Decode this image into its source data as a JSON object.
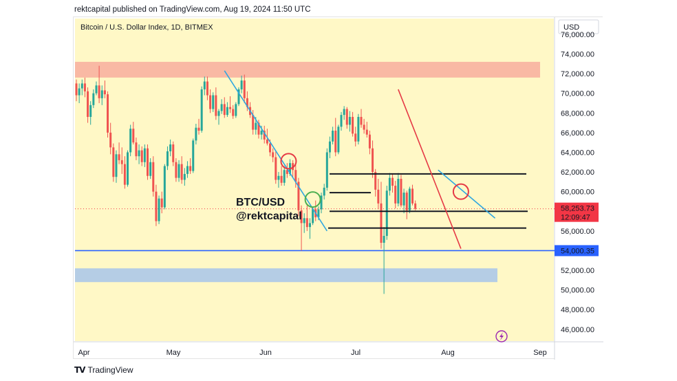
{
  "header": {
    "published_text": "rektcapital published on TradingView.com, Aug 19, 2024 11:50 UTC"
  },
  "footer": {
    "logo_mark": "TV",
    "logo_text": "TradingView"
  },
  "chart_data": {
    "type": "candlestick",
    "title": "Bitcoin / U.S. Dollar Index, 1D, BITMEX",
    "currency_label": "USD",
    "watermark": [
      "BTC/USD",
      "@rektcapital"
    ],
    "x_tick_labels": [
      "Apr",
      "May",
      "Jun",
      "Jul",
      "Aug",
      "Sep"
    ],
    "y_ticks": [
      46000,
      48000,
      50000,
      52000,
      54000,
      56000,
      58000,
      60000,
      62000,
      64000,
      66000,
      68000,
      70000,
      72000,
      74000,
      76000
    ],
    "y_tick_labels": [
      "46,000.00",
      "48,000.00",
      "50,000.00",
      "52,000.00",
      "54,000.00",
      "56,000.00",
      "58,000.00",
      "60,000.00",
      "62,000.00",
      "64,000.00",
      "66,000.00",
      "68,000.00",
      "70,000.00",
      "72,000.00",
      "74,000.00",
      "76,000.00"
    ],
    "ylim": [
      44800,
      77600
    ],
    "price_label": {
      "value": 58253.73,
      "text": "58,253.73",
      "countdown": "12:09:47",
      "color": "#f23645"
    },
    "level_label": {
      "value": 54000.35,
      "text": "54,000.35",
      "color": "#2962ff"
    },
    "colors": {
      "up": "#26a69a",
      "down": "#ef5350",
      "background": "#fff8c6",
      "resistance_zone": "#f9b9a4",
      "support_zone": "#b5cde5",
      "support_line": "#2962ff",
      "trendline_blue": "#2fa6e0",
      "trendline_red": "#e53945",
      "circle_red": "#e53945",
      "circle_green": "#4caf50"
    },
    "zones": [
      {
        "name": "resistance",
        "from": 71600,
        "to": 73200
      },
      {
        "name": "support",
        "from": 50800,
        "to": 52200
      }
    ],
    "horizontal_lines": [
      61800,
      59900,
      58000,
      56300
    ],
    "support_line": 54000.35,
    "candles": [
      [
        71000,
        71400,
        69200,
        69800
      ],
      [
        69800,
        71000,
        69000,
        70500
      ],
      [
        70500,
        71400,
        69800,
        71000
      ],
      [
        71000,
        71600,
        69600,
        70200
      ],
      [
        70200,
        70600,
        67000,
        67600
      ],
      [
        67600,
        69200,
        66800,
        68800
      ],
      [
        68800,
        70400,
        68500,
        70000
      ],
      [
        70000,
        71200,
        69800,
        70800
      ],
      [
        70800,
        72800,
        69000,
        69500
      ],
      [
        69500,
        70800,
        68800,
        70300
      ],
      [
        70300,
        71300,
        69500,
        69900
      ],
      [
        69900,
        70200,
        65500,
        66000
      ],
      [
        66000,
        67000,
        63800,
        64500
      ],
      [
        64500,
        64900,
        61000,
        61500
      ],
      [
        61500,
        64200,
        60900,
        63800
      ],
      [
        63800,
        65000,
        62800,
        63200
      ],
      [
        63200,
        64500,
        61800,
        62800
      ],
      [
        62800,
        63600,
        60300,
        60700
      ],
      [
        60700,
        64200,
        60500,
        64000
      ],
      [
        64000,
        66800,
        63600,
        66400
      ],
      [
        66400,
        67100,
        64800,
        65000
      ],
      [
        65000,
        65500,
        63200,
        63600
      ],
      [
        63600,
        64800,
        62800,
        64200
      ],
      [
        64200,
        64600,
        62600,
        63000
      ],
      [
        63000,
        64800,
        62500,
        64400
      ],
      [
        64400,
        64800,
        61200,
        61600
      ],
      [
        61600,
        63400,
        61300,
        63000
      ],
      [
        63000,
        63600,
        59500,
        60000
      ],
      [
        60000,
        60700,
        56500,
        57000
      ],
      [
        57000,
        59600,
        56700,
        59300
      ],
      [
        59300,
        60000,
        57800,
        58400
      ],
      [
        58400,
        62800,
        58200,
        62600
      ],
      [
        62600,
        64600,
        62200,
        64100
      ],
      [
        64100,
        65300,
        63600,
        64800
      ],
      [
        64800,
        65100,
        62600,
        63000
      ],
      [
        63000,
        63400,
        61000,
        61400
      ],
      [
        61400,
        63200,
        61000,
        62800
      ],
      [
        62800,
        63600,
        60800,
        61200
      ],
      [
        61200,
        62400,
        60600,
        61800
      ],
      [
        61800,
        63100,
        61400,
        62600
      ],
      [
        62600,
        63400,
        61800,
        62100
      ],
      [
        62100,
        65400,
        61900,
        65200
      ],
      [
        65200,
        66900,
        64800,
        66500
      ],
      [
        66500,
        67400,
        65800,
        66200
      ],
      [
        66200,
        70700,
        66000,
        70400
      ],
      [
        70400,
        71700,
        69800,
        71200
      ],
      [
        71200,
        71700,
        69300,
        69800
      ],
      [
        69800,
        70400,
        68000,
        68400
      ],
      [
        68400,
        70100,
        68100,
        69800
      ],
      [
        69800,
        70600,
        67300,
        67700
      ],
      [
        67700,
        68400,
        66800,
        68200
      ],
      [
        68200,
        69400,
        67900,
        68900
      ],
      [
        68900,
        69600,
        67500,
        67800
      ],
      [
        67800,
        69100,
        67600,
        68600
      ],
      [
        68600,
        69700,
        68000,
        68400
      ],
      [
        68400,
        68800,
        67400,
        67700
      ],
      [
        67700,
        69100,
        67500,
        68900
      ],
      [
        68900,
        70600,
        68700,
        70400
      ],
      [
        70400,
        71800,
        70000,
        71300
      ],
      [
        71300,
        71900,
        69000,
        69500
      ],
      [
        69500,
        70200,
        68200,
        68600
      ],
      [
        68600,
        69100,
        67500,
        67800
      ],
      [
        67800,
        68300,
        65800,
        66300
      ],
      [
        66300,
        67600,
        65800,
        67000
      ],
      [
        67000,
        67300,
        65400,
        65800
      ],
      [
        65800,
        66700,
        65300,
        66200
      ],
      [
        66200,
        66700,
        64900,
        65300
      ],
      [
        65300,
        66400,
        64700,
        64900
      ],
      [
        64900,
        65300,
        63600,
        64000
      ],
      [
        64000,
        64400,
        63000,
        63500
      ],
      [
        63500,
        64100,
        60800,
        61200
      ],
      [
        61200,
        62000,
        60400,
        61600
      ],
      [
        61600,
        62600,
        60600,
        60900
      ],
      [
        60900,
        62600,
        60600,
        62200
      ],
      [
        62200,
        62900,
        61400,
        61800
      ],
      [
        61800,
        63300,
        61600,
        62900
      ],
      [
        62900,
        63200,
        61500,
        62200
      ],
      [
        62200,
        62800,
        60400,
        61000
      ],
      [
        61000,
        61400,
        57500,
        58100
      ],
      [
        58100,
        58600,
        54000,
        56800
      ],
      [
        56800,
        57800,
        55800,
        57300
      ],
      [
        57300,
        58600,
        56000,
        56400
      ],
      [
        56400,
        57300,
        55200,
        56800
      ],
      [
        56800,
        58400,
        56600,
        58200
      ],
      [
        58200,
        59100,
        57000,
        57400
      ],
      [
        57400,
        58500,
        57100,
        58200
      ],
      [
        58200,
        59900,
        57800,
        59600
      ],
      [
        59600,
        60800,
        59200,
        60400
      ],
      [
        60400,
        64400,
        60100,
        64000
      ],
      [
        64000,
        65600,
        63400,
        65100
      ],
      [
        65100,
        66600,
        64800,
        66200
      ],
      [
        66200,
        67500,
        63600,
        64000
      ],
      [
        64000,
        66800,
        63800,
        66600
      ],
      [
        66600,
        68100,
        66200,
        67800
      ],
      [
        67800,
        68700,
        67300,
        68400
      ],
      [
        68400,
        68600,
        66400,
        66800
      ],
      [
        66800,
        68200,
        66100,
        67600
      ],
      [
        67600,
        68100,
        65600,
        65900
      ],
      [
        65900,
        66600,
        64600,
        65100
      ],
      [
        65100,
        67900,
        64800,
        67600
      ],
      [
        67600,
        68400,
        66500,
        66800
      ],
      [
        66800,
        67400,
        65900,
        66300
      ],
      [
        66300,
        67100,
        65500,
        65800
      ],
      [
        65800,
        66200,
        63800,
        64400
      ],
      [
        64400,
        65200,
        61400,
        62000
      ],
      [
        62000,
        62300,
        59500,
        60200
      ],
      [
        60200,
        61300,
        58200,
        58800
      ],
      [
        58800,
        61000,
        54200,
        54800
      ],
      [
        54800,
        56400,
        49600,
        55500
      ],
      [
        55500,
        60600,
        55100,
        60100
      ],
      [
        60100,
        61900,
        59600,
        61400
      ],
      [
        61400,
        61800,
        59900,
        60600
      ],
      [
        60600,
        61100,
        58300,
        58800
      ],
      [
        58800,
        61900,
        58500,
        61300
      ],
      [
        61300,
        61700,
        58400,
        58600
      ],
      [
        58600,
        60300,
        57800,
        59900
      ],
      [
        59900,
        60100,
        57200,
        58100
      ],
      [
        58100,
        60500,
        57800,
        60300
      ],
      [
        60300,
        60700,
        58600,
        58800
      ],
      [
        58800,
        59100,
        58100,
        58254
      ]
    ],
    "annotations": [
      {
        "type": "trendline",
        "color_key": "trendline_blue",
        "from": [
          52,
          72300
        ],
        "to": [
          88,
          56000
        ]
      },
      {
        "type": "trendline",
        "color_key": "trendline_red",
        "from": [
          113,
          70400
        ],
        "to": [
          135,
          54200
        ]
      },
      {
        "type": "trendline",
        "color_key": "trendline_blue",
        "from": [
          127,
          62200
        ],
        "to": [
          147,
          57300
        ]
      },
      {
        "type": "circle",
        "color_key": "circle_red",
        "x": 74.5,
        "y": 63100
      },
      {
        "type": "circle",
        "color_key": "circle_green",
        "x": 83,
        "y": 59200
      },
      {
        "type": "circle",
        "color_key": "circle_red",
        "x": 135,
        "y": 60000
      }
    ]
  }
}
